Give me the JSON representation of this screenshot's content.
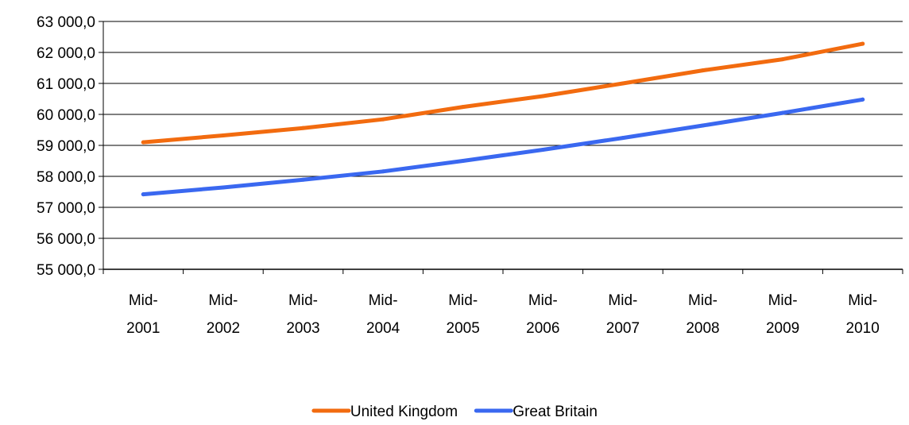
{
  "chart_data": {
    "type": "line",
    "title": "",
    "xlabel": "",
    "ylabel": "",
    "categories": [
      [
        "Mid-",
        "2001"
      ],
      [
        "Mid-",
        "2002"
      ],
      [
        "Mid-",
        "2003"
      ],
      [
        "Mid-",
        "2004"
      ],
      [
        "Mid-",
        "2005"
      ],
      [
        "Mid-",
        "2006"
      ],
      [
        "Mid-",
        "2007"
      ],
      [
        "Mid-",
        "2008"
      ],
      [
        "Mid-",
        "2009"
      ],
      [
        "Mid-",
        "2010"
      ]
    ],
    "ylim": [
      55000,
      63000
    ],
    "ytick_step": 1000,
    "ytick_labels": [
      "55 000,0",
      "56 000,0",
      "57 000,0",
      "58 000,0",
      "59 000,0",
      "60 000,0",
      "61 000,0",
      "62 000,0",
      "63 000,0"
    ],
    "grid": true,
    "legend_position": "bottom",
    "series": [
      {
        "name": "United Kingdom",
        "color": "#f26b0f",
        "values": [
          59100,
          59320,
          59560,
          59840,
          60240,
          60590,
          61000,
          61420,
          61780,
          62280
        ]
      },
      {
        "name": "Great Britain",
        "color": "#3a68f0",
        "values": [
          57420,
          57640,
          57890,
          58160,
          58500,
          58860,
          59240,
          59640,
          60050,
          60480
        ]
      }
    ]
  }
}
